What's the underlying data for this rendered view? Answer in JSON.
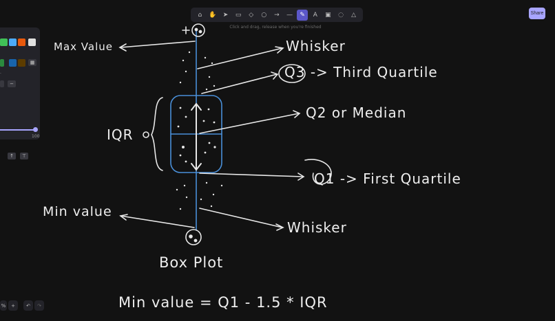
{
  "toolbar": {
    "tools": [
      {
        "icon": "lock-icon",
        "glyph": "⌂"
      },
      {
        "icon": "hand-icon",
        "glyph": "✋"
      },
      {
        "icon": "pointer-icon",
        "glyph": "➤"
      },
      {
        "icon": "rectangle-icon",
        "glyph": "▭"
      },
      {
        "icon": "diamond-icon",
        "glyph": "◇"
      },
      {
        "icon": "ellipse-icon",
        "glyph": "○"
      },
      {
        "icon": "arrow-icon",
        "glyph": "→"
      },
      {
        "icon": "line-icon",
        "glyph": "—"
      },
      {
        "icon": "pencil-icon",
        "glyph": "✎",
        "active": true
      },
      {
        "icon": "text-icon",
        "glyph": "A"
      },
      {
        "icon": "image-icon",
        "glyph": "▣"
      },
      {
        "icon": "eraser-icon",
        "glyph": "◌"
      },
      {
        "icon": "laser-icon",
        "glyph": "△"
      }
    ],
    "hint": "Click and drag, release when you're finished",
    "share_label": "Share"
  },
  "side_panel": {
    "colors": [
      "#40c057",
      "#4dabf7",
      "#e8590c",
      "#e0e0e0",
      "#2b8a3e",
      "#1864ab",
      "#5c3c00"
    ],
    "slider_value": "100"
  },
  "canvas": {
    "labels": {
      "max_value": "Max Value",
      "whisker_top": "Whisker",
      "q3": "Q3 -> Third Quartile",
      "q2": "Q2 or Median",
      "iqr": "IQR",
      "q1": "Q1 -> First Quartile",
      "min_value": "Min value",
      "whisker_bottom": "Whisker",
      "title": "Box Plot",
      "formula": "Min value = Q1 - 1.5 * IQR"
    }
  },
  "footer": {
    "zoom": "%",
    "zoom_in": "+",
    "undo": "↶",
    "redo": "↷"
  }
}
